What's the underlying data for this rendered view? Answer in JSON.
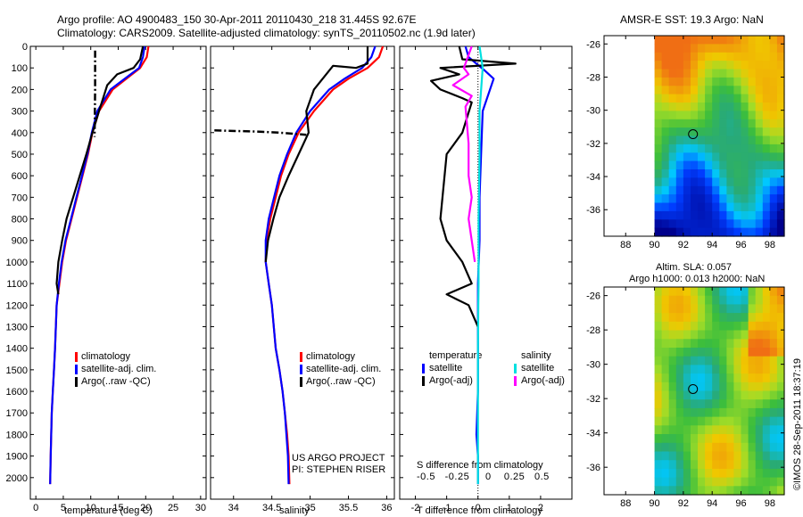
{
  "header": {
    "line1": "Argo profile: AO 4900483_150 30-Apr-2011 20110430_218 31.445S 92.67E",
    "line2": "Climatology: CARS2009. Satellite-adjusted climatology: synTS_20110502.nc (1.9d later)"
  },
  "colors": {
    "climatology": "#ff0000",
    "satellite": "#0000ff",
    "argo": "#000000",
    "sat_diff": "#00e0e0",
    "argo_diff": "#ff00ff"
  },
  "panels": {
    "temp_xlabel": "temperature (deg C)",
    "sal_xlabel": "salinity",
    "diff_xlabel": "T difference from climatology",
    "diff_xlabel_top": "S difference from climatology",
    "legend": [
      "climatology",
      "satellite-adj. clim.",
      "Argo(..raw -QC)"
    ],
    "diff_legend": {
      "temp_header": "temperature",
      "sal_header": "salinity",
      "temp_items": [
        "satellite",
        "Argo(-adj)"
      ],
      "sal_items": [
        "satellite",
        "Argo(-adj)"
      ]
    },
    "credit": [
      "US ARGO PROJECT",
      "PI: STEPHEN RISER"
    ]
  },
  "maps": {
    "top_title": "AMSR-E SST: 19.3 Argo: NaN",
    "bottom_title": [
      "Altim. SLA: 0.057",
      "Argo h1000: 0.013 h2000: NaN"
    ],
    "lon_ticks": [
      "88",
      "90",
      "92",
      "94",
      "96",
      "98"
    ],
    "lat_ticks": [
      "-26",
      "-28",
      "-30",
      "-32",
      "-34",
      "-36"
    ]
  },
  "footer": {
    "stamp": "©IMOS 28-Sep-2011 18:37:19"
  },
  "chart_data": [
    {
      "type": "line",
      "name": "temperature",
      "xlabel": "temperature (deg C)",
      "ylabel": "",
      "xlim": [
        -1,
        31
      ],
      "ylim": [
        2100,
        0
      ],
      "xticks": [
        0,
        5,
        10,
        15,
        20,
        25,
        30
      ],
      "yticks": [
        0,
        100,
        200,
        300,
        400,
        500,
        600,
        700,
        800,
        900,
        1000,
        1100,
        1200,
        1300,
        1400,
        1500,
        1600,
        1700,
        1800,
        1900,
        2000
      ],
      "series": [
        {
          "name": "climatology",
          "x": [
            20.5,
            20.2,
            19.0,
            16.5,
            14.0,
            11.5,
            10.3,
            9.5,
            8.5,
            7.5,
            6.5,
            5.5,
            4.8,
            4.3,
            3.8,
            3.5,
            3.3,
            3.1,
            2.9,
            2.8,
            2.7,
            2.6
          ],
          "y": [
            0,
            50,
            100,
            150,
            200,
            300,
            400,
            500,
            600,
            700,
            800,
            900,
            1000,
            1100,
            1200,
            1400,
            1500,
            1600,
            1700,
            1800,
            1900,
            2030
          ]
        },
        {
          "name": "satellite-adj. clim.",
          "x": [
            19.8,
            19.5,
            18.8,
            16.2,
            13.6,
            11.2,
            10.2,
            9.4,
            8.4,
            7.4,
            6.4,
            5.4,
            4.7,
            4.2,
            3.8,
            3.5,
            3.3,
            3.1,
            2.9,
            2.8,
            2.7,
            2.6
          ],
          "y": [
            0,
            50,
            100,
            150,
            200,
            300,
            400,
            500,
            600,
            700,
            800,
            900,
            1000,
            1100,
            1200,
            1400,
            1500,
            1600,
            1700,
            1800,
            1900,
            2030
          ]
        },
        {
          "name": "Argo(..raw -QC)",
          "x": [
            19.5,
            19.0,
            17.8,
            14.8,
            13.0,
            11.5,
            10.3,
            9.2,
            8.0,
            6.8,
            5.6,
            4.8,
            4.1,
            3.8,
            4.1
          ],
          "y": [
            0,
            60,
            100,
            130,
            180,
            300,
            400,
            500,
            600,
            700,
            800,
            900,
            1000,
            1100,
            1150
          ]
        },
        {
          "name": "Argo bad data (dash-dot)",
          "x": [
            10.8,
            10.8,
            10.7
          ],
          "y": [
            20,
            200,
            420
          ]
        }
      ]
    },
    {
      "type": "line",
      "name": "salinity",
      "xlabel": "salinity",
      "ylabel": "",
      "xlim": [
        33.7,
        36.1
      ],
      "ylim": [
        2100,
        0
      ],
      "xticks": [
        34,
        34.5,
        35,
        35.5,
        36
      ],
      "series": [
        {
          "name": "climatology",
          "x": [
            35.95,
            35.9,
            35.75,
            35.5,
            35.3,
            35.05,
            34.85,
            34.72,
            34.62,
            34.55,
            34.48,
            34.43,
            34.42,
            34.46,
            34.5,
            34.55,
            34.6,
            34.64,
            34.67,
            34.7,
            34.72,
            34.73
          ],
          "y": [
            0,
            50,
            100,
            150,
            200,
            300,
            400,
            500,
            600,
            700,
            800,
            900,
            1000,
            1100,
            1200,
            1400,
            1500,
            1600,
            1700,
            1800,
            1900,
            2030
          ]
        },
        {
          "name": "satellite-adj. clim.",
          "x": [
            35.85,
            35.8,
            35.68,
            35.45,
            35.25,
            35.0,
            34.82,
            34.7,
            34.6,
            34.53,
            34.46,
            34.42,
            34.42,
            34.46,
            34.5,
            34.55,
            34.6,
            34.64,
            34.67,
            34.69,
            34.71,
            34.72
          ],
          "y": [
            0,
            50,
            100,
            150,
            200,
            300,
            400,
            500,
            600,
            700,
            800,
            900,
            1000,
            1100,
            1200,
            1400,
            1500,
            1600,
            1700,
            1800,
            1900,
            2030
          ]
        },
        {
          "name": "Argo(..raw -QC)",
          "x": [
            35.75,
            35.75,
            35.6,
            35.3,
            35.05,
            34.95,
            34.98,
            34.85,
            34.72,
            34.6,
            34.52,
            34.45,
            34.42
          ],
          "y": [
            0,
            80,
            100,
            90,
            200,
            300,
            400,
            500,
            600,
            700,
            800,
            900,
            1000
          ]
        },
        {
          "name": "Argo bad data (dash-dot)",
          "x": [
            33.75,
            34.3,
            34.6,
            34.95
          ],
          "y": [
            390,
            395,
            400,
            410
          ]
        }
      ]
    },
    {
      "type": "line",
      "name": "difference from climatology",
      "xlabel": "T difference from climatology",
      "xlabel_top": "S difference from climatology",
      "xlim": [
        -2.5,
        3
      ],
      "ylim": [
        2100,
        0
      ],
      "xticks": [
        -2,
        -1,
        0,
        1,
        2
      ],
      "xticks_top": [
        "-0.5",
        "-0.25",
        "0",
        "0.25",
        "0.5"
      ],
      "series": [
        {
          "name": "temperature satellite",
          "x": [
            -0.4,
            -0.3,
            0.2,
            0.5,
            0.15,
            0.1,
            0.05,
            0.05,
            0,
            0,
            0,
            0,
            -0.05,
            0,
            0
          ],
          "y": [
            0,
            50,
            110,
            150,
            300,
            500,
            700,
            900,
            1100,
            1200,
            1400,
            1600,
            1800,
            1900,
            2030
          ]
        },
        {
          "name": "temperature Argo(-adj)",
          "x": [
            -0.6,
            -0.5,
            1.2,
            -1.2,
            -0.6,
            -1.5,
            -1.2,
            -0.5,
            -0.2,
            -0.5,
            -1.0,
            -1.2,
            -1.0,
            -0.5,
            -0.2,
            -1.0,
            -0.3,
            0.0
          ],
          "y": [
            0,
            60,
            80,
            100,
            130,
            160,
            200,
            240,
            260,
            400,
            500,
            800,
            900,
            1000,
            1100,
            1150,
            1200,
            1300
          ]
        },
        {
          "name": "salinity satellite",
          "x": [
            0.05,
            0.15,
            0.05,
            0.05,
            0.02,
            0.02,
            0.01,
            0.0,
            0.0,
            0.0,
            0.0,
            0.0
          ],
          "y": [
            0,
            100,
            300,
            500,
            800,
            1100,
            1200,
            1400,
            1600,
            1800,
            1900,
            2030
          ]
        },
        {
          "name": "salinity Argo(-adj)",
          "x": [
            -0.2,
            -0.45,
            -0.3,
            -0.8,
            -0.2,
            -0.4,
            -0.3,
            -0.3,
            -0.2,
            -0.3,
            -0.2,
            -0.1
          ],
          "y": [
            0,
            100,
            130,
            180,
            230,
            280,
            450,
            600,
            700,
            800,
            900,
            1000
          ]
        }
      ]
    },
    {
      "type": "heatmap",
      "name": "AMSR-E SST map",
      "title": "AMSR-E SST: 19.3 Argo: NaN",
      "xlim": [
        86.5,
        99
      ],
      "ylim": [
        -37.6,
        -25.5
      ],
      "xticks": [
        88,
        90,
        92,
        94,
        96,
        98
      ],
      "yticks": [
        -26,
        -28,
        -30,
        -32,
        -34,
        -36
      ],
      "data_lon_range": [
        90,
        99
      ],
      "marker": {
        "lon": 92.67,
        "lat": -31.445
      }
    },
    {
      "type": "heatmap",
      "name": "Altimetry SLA map",
      "title": "Altim. SLA: 0.057 / Argo h1000: 0.013 h2000: NaN",
      "xlim": [
        86.5,
        99
      ],
      "ylim": [
        -37.6,
        -25.5
      ],
      "xticks": [
        88,
        90,
        92,
        94,
        96,
        98
      ],
      "yticks": [
        -26,
        -28,
        -30,
        -32,
        -34,
        -36
      ],
      "data_lon_range": [
        90,
        99
      ],
      "marker": {
        "lon": 92.67,
        "lat": -31.445
      }
    }
  ]
}
